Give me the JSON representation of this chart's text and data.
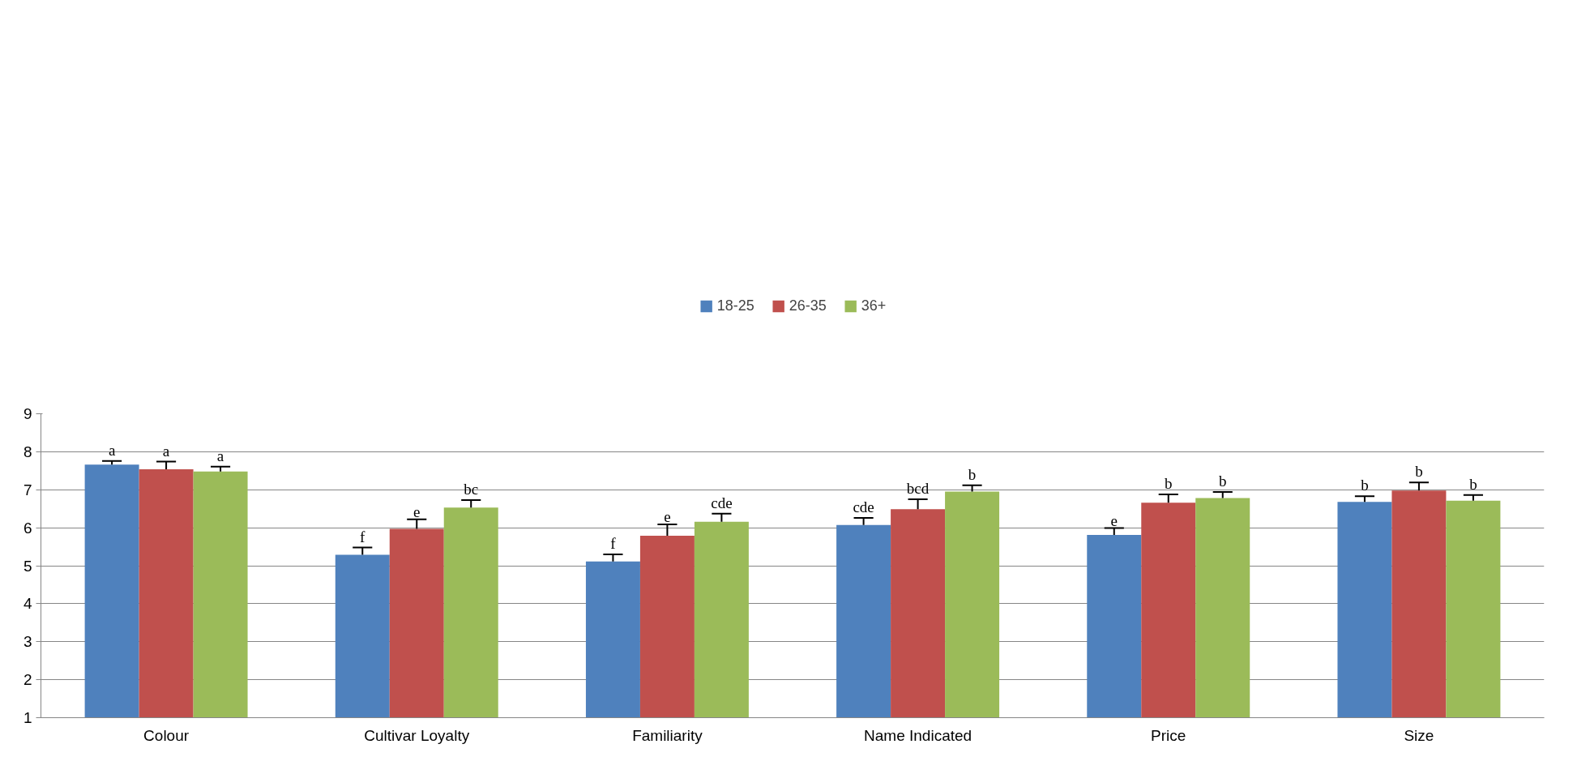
{
  "chart_data": {
    "type": "bar",
    "categories": [
      "Colour",
      "Cultivar Loyalty",
      "Familiarity",
      "Name Indicated",
      "Price",
      "Size"
    ],
    "series": [
      {
        "name": "18-25",
        "color": "#4f81bd",
        "values": [
          7.66,
          5.29,
          5.11,
          6.07,
          5.81,
          6.68
        ],
        "errors": [
          0.1,
          0.19,
          0.19,
          0.19,
          0.18,
          0.15
        ],
        "value_labels": [
          "a",
          "f",
          "f",
          "cde",
          "e",
          "b"
        ]
      },
      {
        "name": "26-35",
        "color": "#c0504d",
        "values": [
          7.54,
          5.97,
          5.79,
          6.49,
          6.66,
          6.98
        ],
        "errors": [
          0.2,
          0.25,
          0.3,
          0.26,
          0.22,
          0.21
        ],
        "value_labels": [
          "a",
          "e",
          "e",
          "bcd",
          "b",
          "b"
        ]
      },
      {
        "name": "36+",
        "color": "#9bbb59",
        "values": [
          7.48,
          6.53,
          6.16,
          6.95,
          6.78,
          6.71
        ],
        "errors": [
          0.13,
          0.2,
          0.21,
          0.17,
          0.16,
          0.15
        ],
        "value_labels": [
          "a",
          "bc",
          "cde",
          "b",
          "b",
          "b"
        ]
      }
    ],
    "ylim": [
      1,
      9
    ],
    "yticks": [
      1,
      2,
      3,
      4,
      5,
      6,
      7,
      8,
      9
    ],
    "grid": "y",
    "legend": "top"
  }
}
